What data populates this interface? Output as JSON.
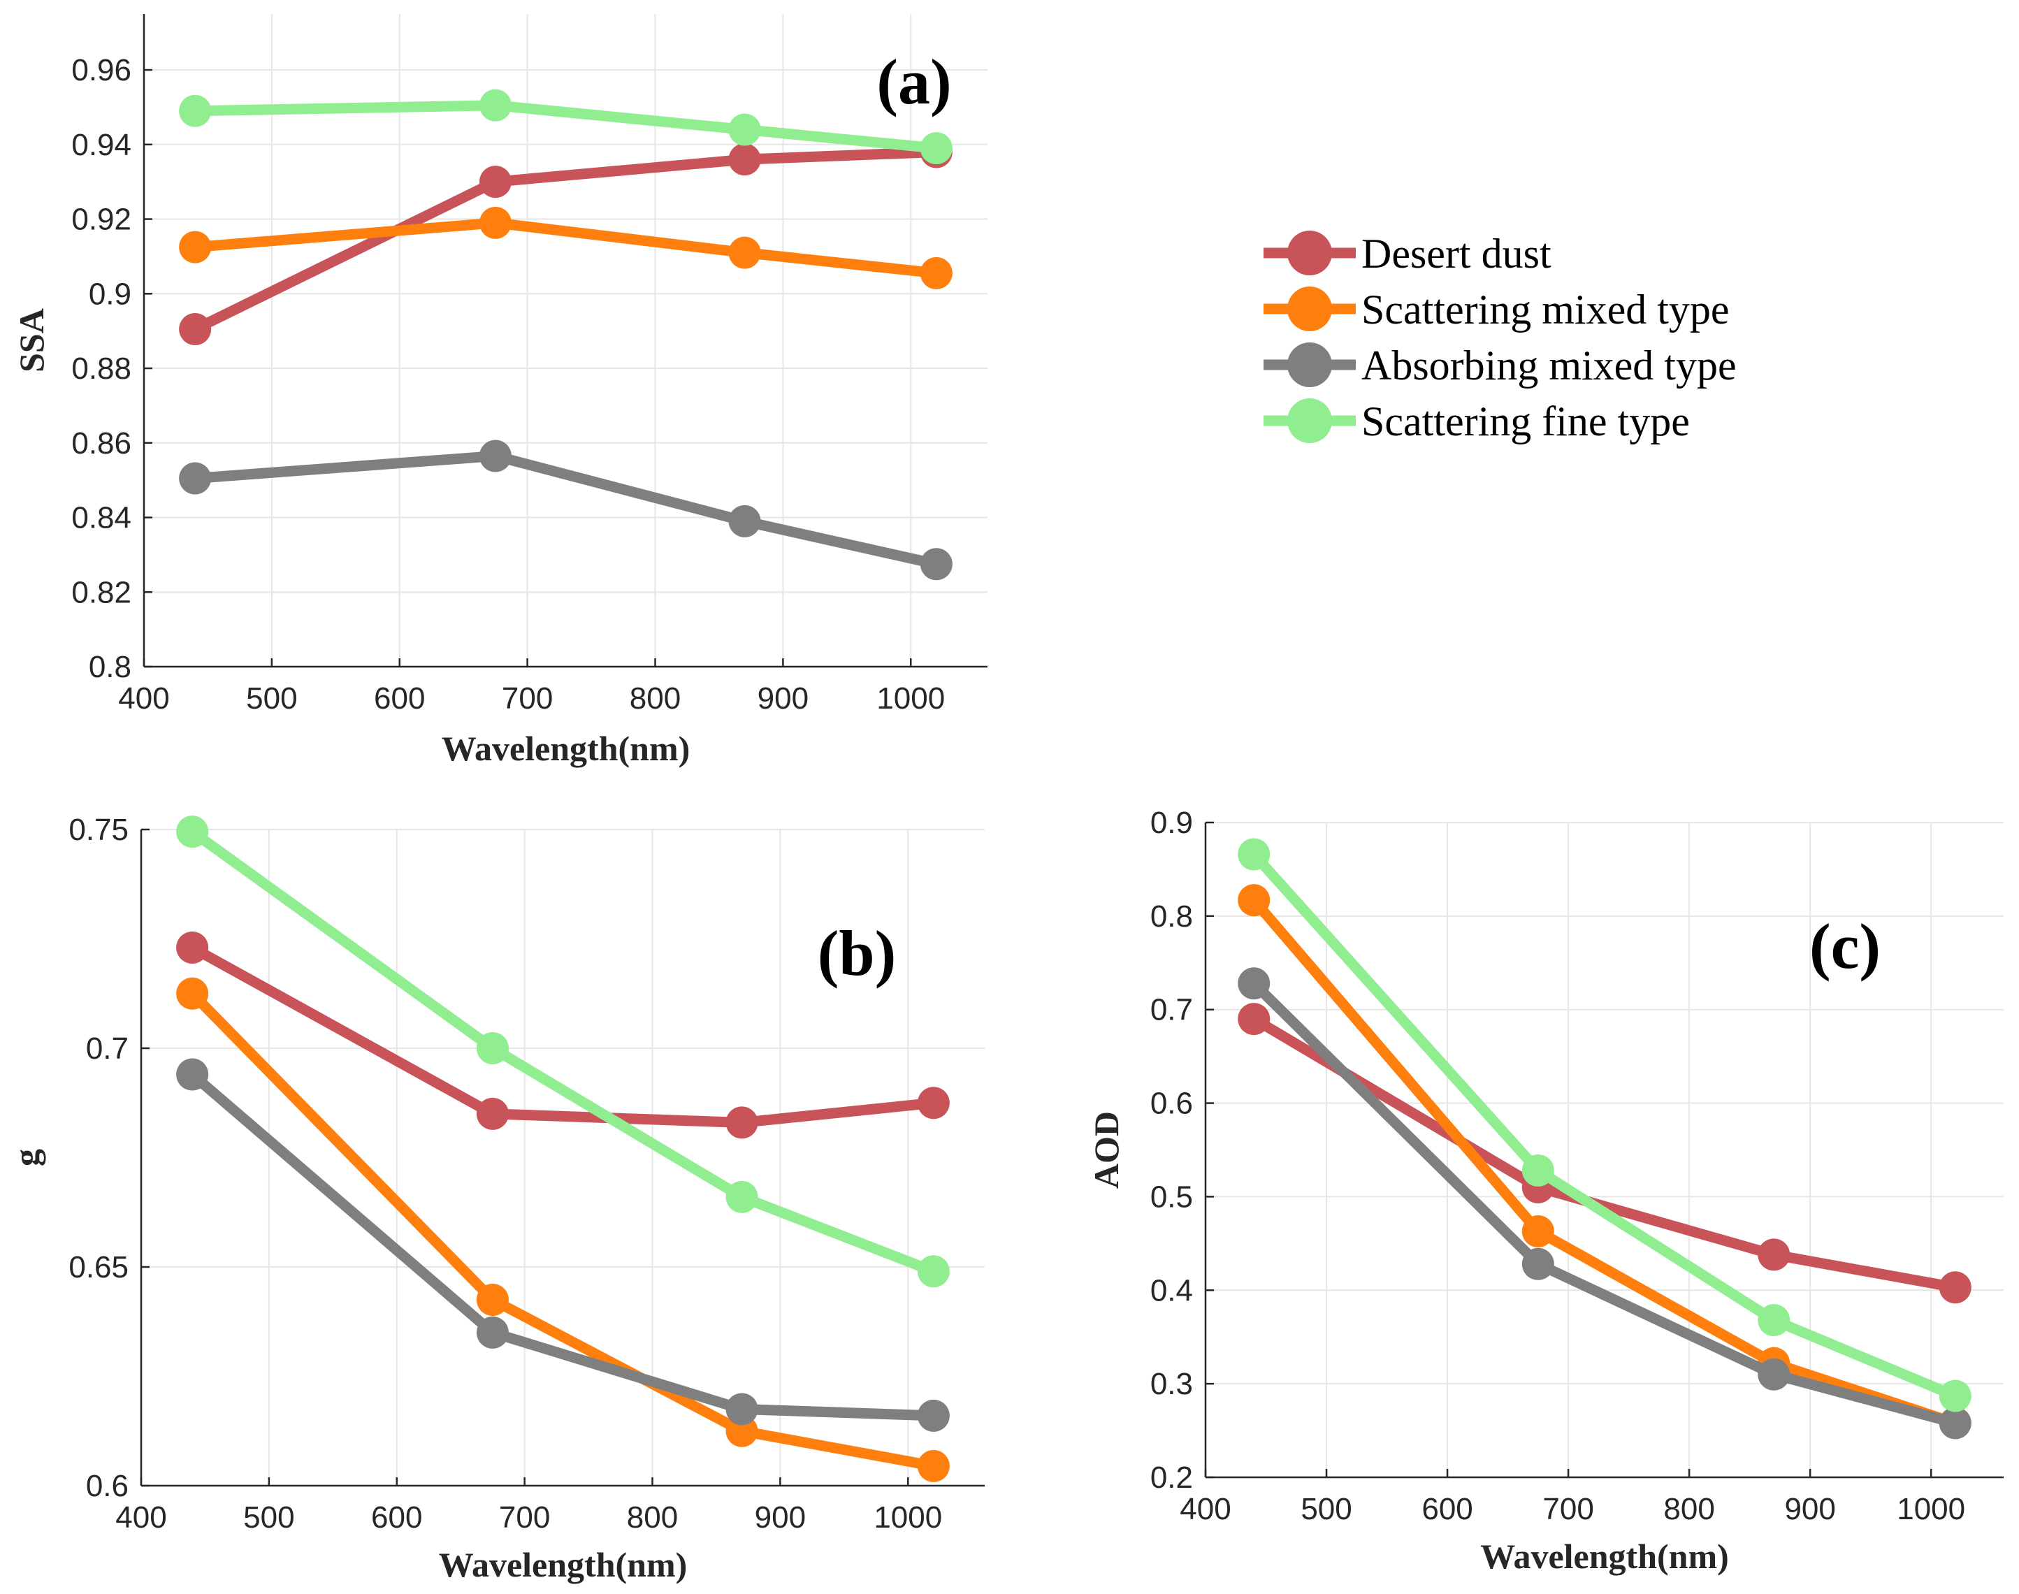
{
  "chart_data": [
    {
      "id": "a",
      "type": "line",
      "panel_label": "(a)",
      "xlabel": "Wavelength(nm)",
      "ylabel": "SSA",
      "xlim": [
        400,
        1060
      ],
      "ylim": [
        0.8,
        0.975
      ],
      "xticks": [
        400,
        500,
        600,
        700,
        800,
        900,
        1000
      ],
      "yticks": [
        "0.8",
        "0.82",
        "0.84",
        "0.86",
        "0.88",
        "0.9",
        "0.92",
        "0.94",
        "0.96"
      ],
      "grid": true,
      "x": [
        440,
        675,
        870,
        1020
      ],
      "series": [
        {
          "name": "Desert dust",
          "values": [
            0.8905,
            0.93,
            0.936,
            0.938
          ]
        },
        {
          "name": "Scattering mixed type",
          "values": [
            0.9125,
            0.919,
            0.911,
            0.9055
          ]
        },
        {
          "name": "Absorbing mixed type",
          "values": [
            0.8505,
            0.8565,
            0.839,
            0.8275
          ]
        },
        {
          "name": "Scattering fine type",
          "values": [
            0.949,
            0.9505,
            0.944,
            0.939
          ]
        }
      ]
    },
    {
      "id": "b",
      "type": "line",
      "panel_label": "(b)",
      "xlabel": "Wavelength(nm)",
      "ylabel": "g",
      "xlim": [
        400,
        1060
      ],
      "ylim": [
        0.6,
        0.75
      ],
      "xticks": [
        400,
        500,
        600,
        700,
        800,
        900,
        1000
      ],
      "yticks": [
        "0.6",
        "0.65",
        "0.7",
        "0.75"
      ],
      "grid": true,
      "x": [
        440,
        675,
        870,
        1020
      ],
      "series": [
        {
          "name": "Desert dust",
          "values": [
            0.723,
            0.685,
            0.683,
            0.6875
          ]
        },
        {
          "name": "Scattering mixed type",
          "values": [
            0.7125,
            0.6425,
            0.6125,
            0.6045
          ]
        },
        {
          "name": "Absorbing mixed type",
          "values": [
            0.694,
            0.635,
            0.6175,
            0.616
          ]
        },
        {
          "name": "Scattering fine type",
          "values": [
            0.7495,
            0.7,
            0.666,
            0.649
          ]
        }
      ]
    },
    {
      "id": "c",
      "type": "line",
      "panel_label": "(c)",
      "xlabel": "Wavelength(nm)",
      "ylabel": "AOD",
      "xlim": [
        400,
        1060
      ],
      "ylim": [
        0.2,
        0.9
      ],
      "xticks": [
        400,
        500,
        600,
        700,
        800,
        900,
        1000
      ],
      "yticks": [
        "0.2",
        "0.3",
        "0.4",
        "0.5",
        "0.6",
        "0.7",
        "0.8",
        "0.9"
      ],
      "grid": true,
      "x": [
        440,
        675,
        870,
        1020
      ],
      "series": [
        {
          "name": "Desert dust",
          "values": [
            0.69,
            0.51,
            0.438,
            0.403
          ]
        },
        {
          "name": "Scattering mixed type",
          "values": [
            0.817,
            0.463,
            0.322,
            0.258
          ]
        },
        {
          "name": "Absorbing mixed type",
          "values": [
            0.728,
            0.428,
            0.31,
            0.258
          ]
        },
        {
          "name": "Scattering fine type",
          "values": [
            0.866,
            0.528,
            0.368,
            0.287
          ]
        }
      ]
    }
  ],
  "legend": {
    "placement": "upper-right",
    "entries": [
      "Desert dust",
      "Scattering mixed type",
      "Absorbing mixed type",
      "Scattering fine type"
    ]
  },
  "series_colors": {
    "Desert dust": "#c8545a",
    "Scattering mixed type": "#ff7f0e",
    "Absorbing mixed type": "#7f7f7f",
    "Scattering fine type": "#90ee90"
  }
}
